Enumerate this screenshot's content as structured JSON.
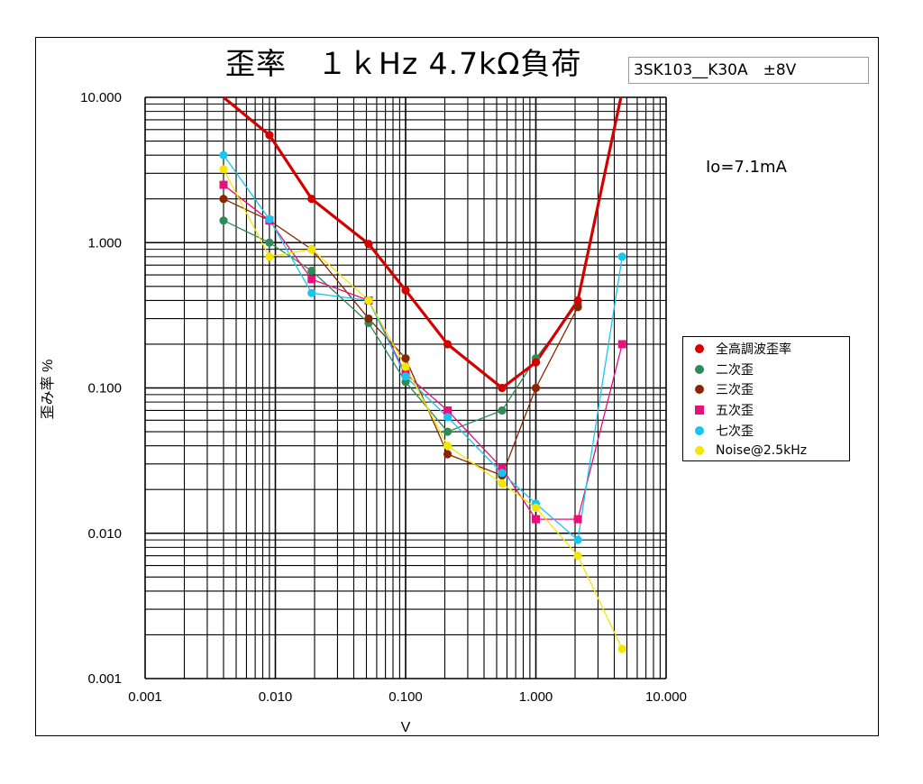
{
  "chart_data": {
    "type": "line",
    "title": "歪率　１ｋHz 4.7kΩ負荷",
    "subtitle_box": "3SK103__K30A　±8V",
    "annotation": "Io=7.1mA",
    "xlabel": "V",
    "ylabel": "歪み率 %",
    "x_scale": "log",
    "y_scale": "log",
    "xlim": [
      0.001,
      10
    ],
    "ylim": [
      0.001,
      10
    ],
    "grid": true,
    "legend_position": "right",
    "x_tick_labels": [
      "0.001",
      "0.010",
      "0.100",
      "1.000",
      "10.000"
    ],
    "y_tick_labels": [
      "0.001",
      "0.010",
      "0.100",
      "1.000",
      "10.000"
    ],
    "series": [
      {
        "name": "全高調波歪率",
        "color": "#d40000",
        "marker": "circle",
        "width": 3.2,
        "x": [
          0.004,
          0.009,
          0.019,
          0.052,
          0.1,
          0.21,
          0.55,
          1.0,
          2.1,
          4.6
        ],
        "y": [
          10.0,
          5.5,
          2.0,
          0.98,
          0.47,
          0.2,
          0.1,
          0.15,
          0.4,
          11.0
        ],
        "markers": [
          false,
          true,
          true,
          true,
          true,
          true,
          true,
          true,
          true,
          false
        ]
      },
      {
        "name": "二次歪",
        "color": "#2e8b57",
        "marker": "circle",
        "width": 1.3,
        "x": [
          0.004,
          0.009,
          0.019,
          0.052,
          0.1,
          0.21,
          0.55,
          1.0,
          2.1
        ],
        "y": [
          1.42,
          1.0,
          0.64,
          0.28,
          0.11,
          0.05,
          0.07,
          0.16,
          0.38
        ]
      },
      {
        "name": "三次歪",
        "color": "#8b2500",
        "marker": "circle",
        "width": 1.3,
        "x": [
          0.004,
          0.009,
          0.019,
          0.052,
          0.1,
          0.21,
          0.55,
          1.0,
          2.1
        ],
        "y": [
          2.0,
          1.42,
          0.9,
          0.3,
          0.16,
          0.035,
          0.025,
          0.1,
          0.36
        ]
      },
      {
        "name": "五次歪",
        "color": "#e8107a",
        "marker": "square",
        "width": 1.3,
        "x": [
          0.004,
          0.009,
          0.019,
          0.052,
          0.1,
          0.21,
          0.55,
          1.0,
          2.1,
          4.6
        ],
        "y": [
          2.5,
          1.42,
          0.56,
          0.4,
          0.125,
          0.07,
          0.028,
          0.0125,
          0.0125,
          0.2
        ]
      },
      {
        "name": "七次歪",
        "color": "#17c6f0",
        "marker": "circle",
        "width": 1.3,
        "x": [
          0.004,
          0.009,
          0.019,
          0.052,
          0.1,
          0.21,
          0.55,
          1.0,
          2.1,
          4.6
        ],
        "y": [
          4.0,
          1.45,
          0.45,
          0.4,
          0.12,
          0.063,
          0.026,
          0.016,
          0.009,
          0.8
        ]
      },
      {
        "name": "Noise@2.5kHz",
        "color": "#f5e600",
        "marker": "circle",
        "width": 1.3,
        "x": [
          0.004,
          0.009,
          0.019,
          0.052,
          0.1,
          0.21,
          0.55,
          1.0,
          2.1,
          4.6
        ],
        "y": [
          3.2,
          0.8,
          0.9,
          0.4,
          0.14,
          0.04,
          0.022,
          0.015,
          0.007,
          0.0016
        ]
      }
    ]
  }
}
